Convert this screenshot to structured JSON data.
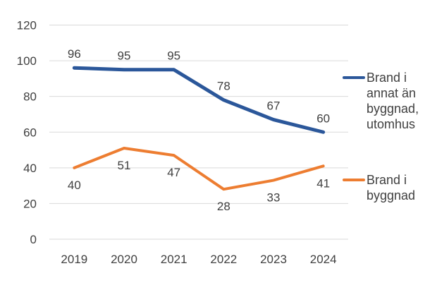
{
  "chart_data": {
    "type": "line",
    "title": "",
    "categories": [
      "2019",
      "2020",
      "2021",
      "2022",
      "2023",
      "2024"
    ],
    "series": [
      {
        "name": "Brand i annat än byggnad, utomhus",
        "values": [
          96,
          95,
          95,
          78,
          67,
          60
        ],
        "color": "#2B579A",
        "label_position": "above",
        "legend_lines": [
          "Brand i",
          "annat än",
          "byggnad,",
          "utomhus"
        ]
      },
      {
        "name": "Brand i byggnad",
        "values": [
          40,
          51,
          47,
          28,
          33,
          41
        ],
        "color": "#ED7D31",
        "label_position": "below",
        "legend_lines": [
          "Brand i",
          "byggnad"
        ]
      }
    ],
    "ylim": [
      0,
      120
    ],
    "yticks": [
      0,
      20,
      40,
      60,
      80,
      100,
      120
    ],
    "grid": true,
    "legend_position": "right",
    "colors": {
      "axis_text": "#404040",
      "data_label": "#404040",
      "legend_text": "#404040",
      "gridline": "#D9D9D9",
      "background": "#FFFFFF"
    }
  }
}
